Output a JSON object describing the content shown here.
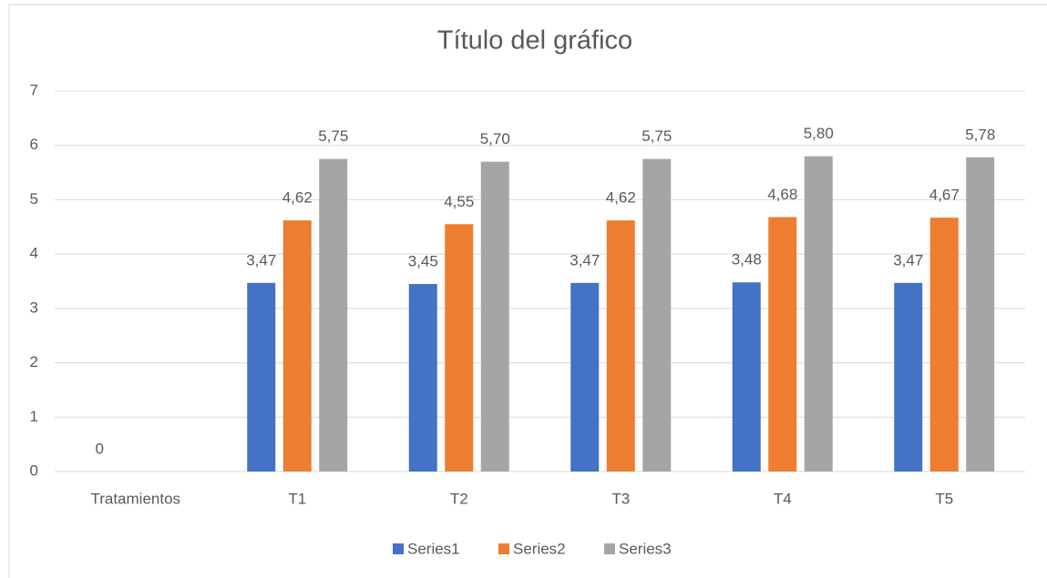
{
  "chart_data": {
    "type": "bar",
    "title": "Título del gráfico",
    "categories": [
      "Tratamientos",
      "T1",
      "T2",
      "T3",
      "T4",
      "T5"
    ],
    "series": [
      {
        "name": "Series1",
        "color": "#4472c4",
        "values": [
          0,
          3.47,
          3.45,
          3.47,
          3.48,
          3.47
        ],
        "value_labels": [
          "0",
          "3,47",
          "3,45",
          "3,47",
          "3,48",
          "3,47"
        ]
      },
      {
        "name": "Series2",
        "color": "#ed7d31",
        "values": [
          null,
          4.62,
          4.55,
          4.62,
          4.68,
          4.67
        ],
        "value_labels": [
          null,
          "4,62",
          "4,55",
          "4,62",
          "4,68",
          "4,67"
        ]
      },
      {
        "name": "Series3",
        "color": "#a5a5a5",
        "values": [
          null,
          5.75,
          5.7,
          5.75,
          5.8,
          5.78
        ],
        "value_labels": [
          null,
          "5,75",
          "5,70",
          "5,75",
          "5,80",
          "5,78"
        ]
      }
    ],
    "ylim": [
      0,
      7
    ],
    "yticks": [
      0,
      1,
      2,
      3,
      4,
      5,
      6,
      7
    ],
    "grid": true,
    "legend": "bottom"
  }
}
